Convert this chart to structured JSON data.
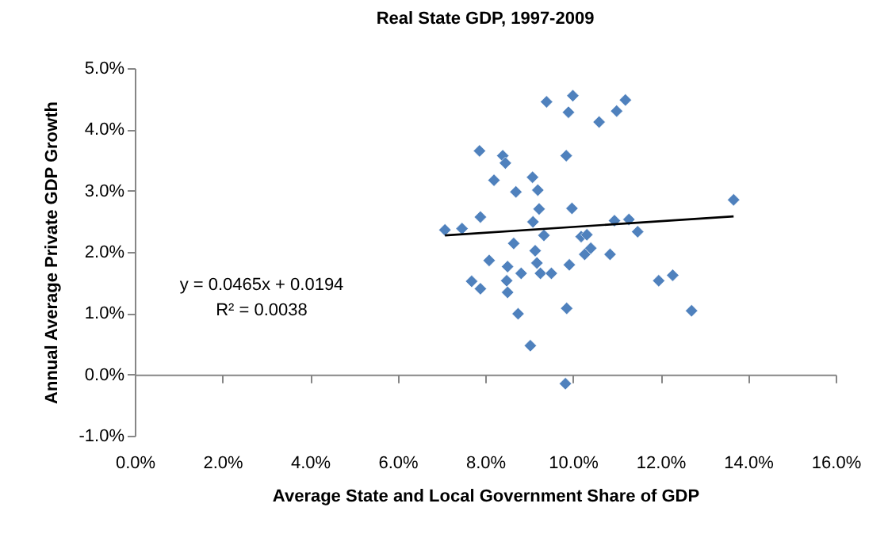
{
  "chart_data": {
    "type": "scatter",
    "title": "Real State GDP, 1997-2009",
    "xlabel": "Average State and Local Government Share of GDP",
    "ylabel": "Annual Average Private GDP Growth",
    "annotations": [
      "y = 0.0465x + 0.0194",
      "R² = 0.0038"
    ],
    "xlim": [
      0,
      16
    ],
    "ylim": [
      -1,
      5
    ],
    "xticks": [
      {
        "value": 0,
        "label": "0.0%"
      },
      {
        "value": 2,
        "label": "2.0%"
      },
      {
        "value": 4,
        "label": "4.0%"
      },
      {
        "value": 6,
        "label": "6.0%"
      },
      {
        "value": 8,
        "label": "8.0%"
      },
      {
        "value": 10,
        "label": "10.0%"
      },
      {
        "value": 12,
        "label": "12.0%"
      },
      {
        "value": 14,
        "label": "14.0%"
      },
      {
        "value": 16,
        "label": "16.0%"
      }
    ],
    "yticks": [
      {
        "value": -1,
        "label": "-1.0%"
      },
      {
        "value": 0,
        "label": "0.0%"
      },
      {
        "value": 1,
        "label": "1.0%"
      },
      {
        "value": 2,
        "label": "2.0%"
      },
      {
        "value": 3,
        "label": "3.0%"
      },
      {
        "value": 4,
        "label": "4.0%"
      },
      {
        "value": 5,
        "label": "5.0%"
      }
    ],
    "series": [
      {
        "marker": "diamond",
        "color": "#4f81bd",
        "x": [
          7.87,
          8.4,
          8.46,
          9.85,
          8.2,
          9.08,
          8.7,
          9.2,
          7.89,
          9.23,
          9.98,
          13.67,
          7.08,
          7.47,
          9.09,
          10.95,
          11.28,
          11.48,
          9.34,
          10.19,
          10.32,
          8.65,
          9.14,
          10.41,
          10.27,
          10.85,
          8.09,
          9.18,
          9.92,
          8.51,
          8.82,
          9.26,
          9.51,
          7.69,
          7.89,
          8.49,
          8.51,
          11.96,
          12.28,
          8.75,
          9.86,
          12.71,
          9.03,
          9.83,
          9.4,
          10.0,
          9.9,
          11.2,
          11.0,
          10.6
        ],
        "values": [
          3.65,
          3.57,
          3.45,
          3.57,
          3.17,
          3.22,
          2.98,
          3.01,
          2.57,
          2.7,
          2.71,
          2.85,
          2.36,
          2.38,
          2.49,
          2.51,
          2.53,
          2.33,
          2.27,
          2.25,
          2.28,
          2.14,
          2.02,
          2.06,
          1.96,
          1.96,
          1.86,
          1.82,
          1.79,
          1.76,
          1.65,
          1.65,
          1.65,
          1.52,
          1.4,
          1.53,
          1.34,
          1.53,
          1.62,
          0.99,
          1.08,
          1.04,
          0.47,
          -0.15,
          4.45,
          4.55,
          4.28,
          4.48,
          4.3,
          4.12
        ]
      },
      {
        "type": "line",
        "color": "#000000",
        "x": [
          7.08,
          13.67
        ],
        "values": [
          2.27,
          2.58
        ]
      }
    ]
  }
}
